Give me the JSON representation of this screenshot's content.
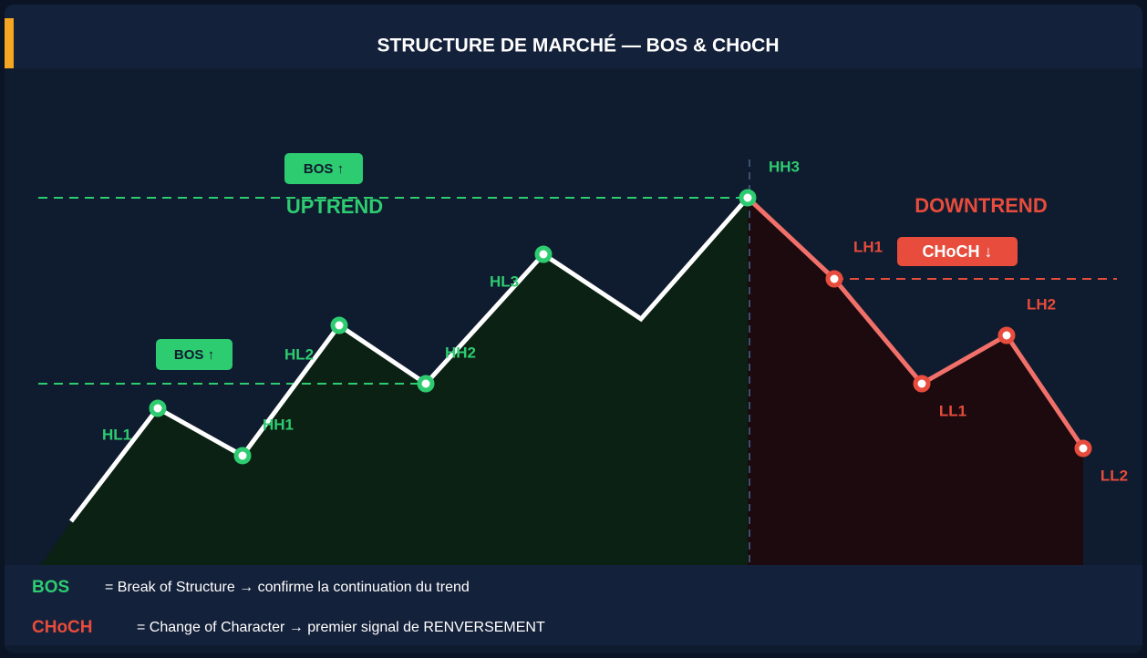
{
  "header": {
    "title": "STRUCTURE DE MARCHÉ — BOS & CHoCH"
  },
  "trends": {
    "up": "UPTREND",
    "down": "DOWNTREND"
  },
  "badges": {
    "bos_high": "BOS ↑",
    "bos_low": "BOS ↑",
    "choch": "CHoCH ↓"
  },
  "points": {
    "hl1": "HL1",
    "hh1": "HH1",
    "hl2": "HL2",
    "hh2": "HH2",
    "hl3": "HL3",
    "hh3": "HH3",
    "lh1": "LH1",
    "lh2": "LH2",
    "ll1": "LL1",
    "ll2": "LL2"
  },
  "legend": [
    {
      "term": "BOS",
      "text": "= Break of Structure → confirme la continuation du trend"
    },
    {
      "term": "CHoCH",
      "text": "= Change of Character → premier signal de RENVERSEMENT"
    }
  ]
}
